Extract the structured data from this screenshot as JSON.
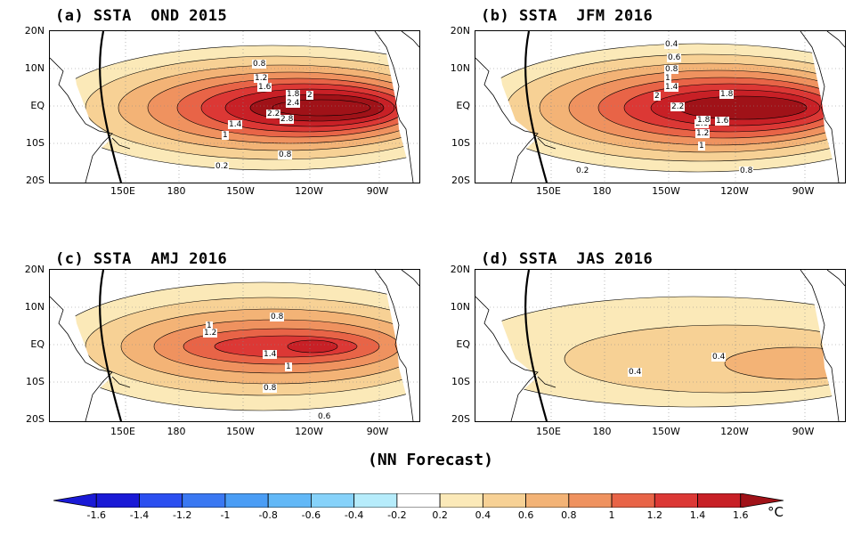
{
  "panels": [
    {
      "id": "a",
      "title": "(a) SSTA  OND 2015",
      "contour_labels": [
        "0.8",
        "1.2",
        "1.6",
        "1.8",
        "2",
        "2.4",
        "2.2",
        "2.8",
        "1.4",
        "1",
        "0.8",
        "0.2"
      ]
    },
    {
      "id": "b",
      "title": "(b) SSTA  JFM 2016",
      "contour_labels": [
        "0.4",
        "0.6",
        "0.8",
        "1",
        "1.4",
        "1.8",
        "2",
        "2.2",
        "2.6",
        "1.8",
        "1.6",
        "1.2",
        "1",
        "0.2",
        "0.8"
      ]
    },
    {
      "id": "c",
      "title": "(c) SSTA  AMJ 2016",
      "contour_labels": [
        "1",
        "1.2",
        "0.8",
        "1.4",
        "1",
        "0.8",
        "0.6"
      ]
    },
    {
      "id": "d",
      "title": "(d) SSTA  JAS 2016",
      "contour_labels": [
        "0.4",
        "0.4"
      ]
    }
  ],
  "lat_ticks": [
    "20N",
    "10N",
    "EQ",
    "10S",
    "20S"
  ],
  "lon_ticks": [
    "150E",
    "180",
    "150W",
    "120W",
    "90W"
  ],
  "subtitle": "(NN Forecast)",
  "colorbar": {
    "labels": [
      "-1.6",
      "-1.4",
      "-1.2",
      "-1",
      "-0.8",
      "-0.6",
      "-0.4",
      "-0.2",
      "0.2",
      "0.4",
      "0.6",
      "0.8",
      "1",
      "1.2",
      "1.4",
      "1.6"
    ],
    "colors": [
      "#1a1ad6",
      "#2b4ff0",
      "#3a78f2",
      "#4a9df5",
      "#62b8f7",
      "#86d2fa",
      "#b6ecfb",
      "#ffffff",
      "#fbe9b8",
      "#f7d195",
      "#f3b376",
      "#ef925f",
      "#e86447",
      "#dc3835",
      "#c82026",
      "#a01218"
    ],
    "unit": "°C"
  },
  "legend_colors": {
    "land": "#ffffff",
    "coast": "#000000"
  }
}
